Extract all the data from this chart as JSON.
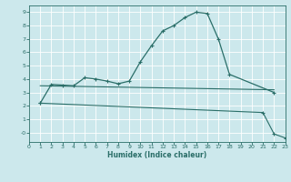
{
  "xlabel": "Humidex (Indice chaleur)",
  "bg_color": "#cce8ec",
  "grid_color": "#ffffff",
  "line_color": "#2a6e68",
  "xlim": [
    0,
    23
  ],
  "ylim": [
    -0.7,
    9.5
  ],
  "xticks": [
    0,
    1,
    2,
    3,
    4,
    5,
    6,
    7,
    8,
    9,
    10,
    11,
    12,
    13,
    14,
    15,
    16,
    17,
    18,
    19,
    20,
    21,
    22,
    23
  ],
  "yticks": [
    0,
    1,
    2,
    3,
    4,
    5,
    6,
    7,
    8,
    9
  ],
  "ytick_labels": [
    "-0",
    "1",
    "2",
    "3",
    "4",
    "5",
    "6",
    "7",
    "8",
    "9"
  ],
  "curve1_x": [
    1,
    2,
    3,
    4,
    5,
    6,
    7,
    8,
    9,
    10,
    11,
    12,
    13,
    14,
    15,
    16,
    17,
    18,
    22
  ],
  "curve1_y": [
    2.2,
    3.6,
    3.55,
    3.5,
    4.1,
    4.0,
    3.85,
    3.65,
    3.85,
    5.3,
    6.5,
    7.6,
    8.0,
    8.6,
    9.0,
    8.9,
    7.0,
    4.35,
    3.0
  ],
  "curve2_x": [
    1,
    22
  ],
  "curve2_y": [
    3.5,
    3.2
  ],
  "curve3_x": [
    1,
    21,
    22,
    23
  ],
  "curve3_y": [
    2.2,
    1.5,
    -0.1,
    -0.4
  ]
}
